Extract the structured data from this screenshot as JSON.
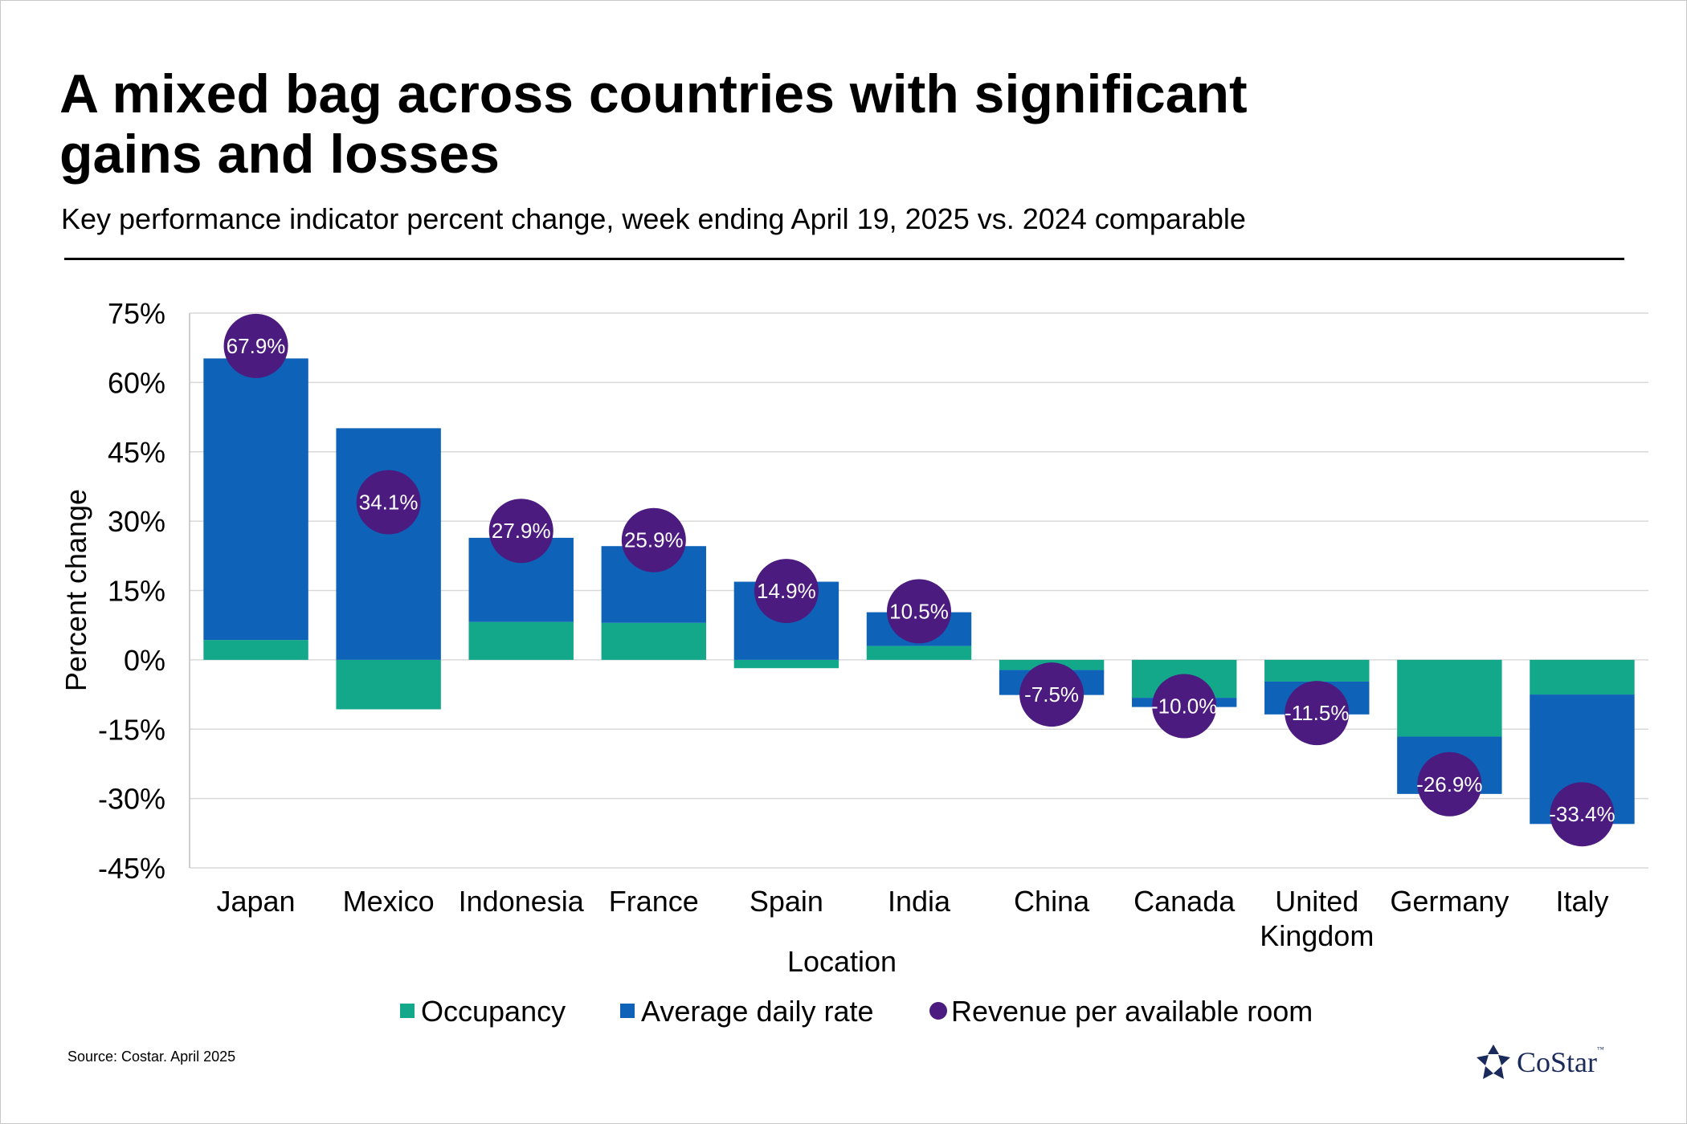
{
  "title": "A mixed bag across countries with significant gains and losses",
  "subtitle": "Key performance indicator percent change, week ending April 19, 2025 vs. 2024 comparable",
  "source": "Source: Costar. April 2025",
  "logo": {
    "text": "CoStar",
    "tm": "™"
  },
  "colors": {
    "occupancy": "#13a88a",
    "adr": "#0e63b8",
    "revpar": "#4b1b7f",
    "grid": "#d9d9d9"
  },
  "chart_data": {
    "type": "bar",
    "stacked": true,
    "categories": [
      "Japan",
      "Mexico",
      "Indonesia",
      "France",
      "Spain",
      "India",
      "China",
      "Canada",
      "United Kingdom",
      "Germany",
      "Italy"
    ],
    "category_lines": [
      [
        "Japan"
      ],
      [
        "Mexico"
      ],
      [
        "Indonesia"
      ],
      [
        "France"
      ],
      [
        "Spain"
      ],
      [
        "India"
      ],
      [
        "China"
      ],
      [
        "Canada"
      ],
      [
        "United",
        "Kingdom"
      ],
      [
        "Germany"
      ],
      [
        "Italy"
      ]
    ],
    "series": [
      {
        "name": "Occupancy",
        "kind": "bar",
        "values": [
          4.3,
          -10.7,
          8.2,
          8.0,
          -1.8,
          3.0,
          -2.2,
          -8.2,
          -4.7,
          -16.6,
          -7.5
        ]
      },
      {
        "name": "Average daily rate",
        "kind": "bar",
        "values": [
          60.9,
          50.1,
          18.2,
          16.6,
          16.9,
          7.3,
          -5.4,
          -2.0,
          -7.1,
          -12.4,
          -28.0
        ]
      },
      {
        "name": "Revenue per available room",
        "kind": "marker",
        "values": [
          67.9,
          34.1,
          27.9,
          25.9,
          14.9,
          10.5,
          -7.5,
          -10.0,
          -11.5,
          -26.9,
          -33.4
        ],
        "labels": [
          "67.9%",
          "34.1%",
          "27.9%",
          "25.9%",
          "14.9%",
          "10.5%",
          "-7.5%",
          "-10.0%",
          "-11.5%",
          "-26.9%",
          "-33.4%"
        ]
      }
    ],
    "ylim": [
      -45,
      75
    ],
    "yticks": [
      75,
      60,
      45,
      30,
      15,
      0,
      -15,
      -30,
      -45
    ],
    "ytick_labels": [
      "75%",
      "60%",
      "45%",
      "30%",
      "15%",
      "0%",
      "-15%",
      "-30%",
      "-45%"
    ],
    "xlabel": "Location",
    "ylabel": "Percent change",
    "grid": true,
    "legend": "bottom-center"
  }
}
